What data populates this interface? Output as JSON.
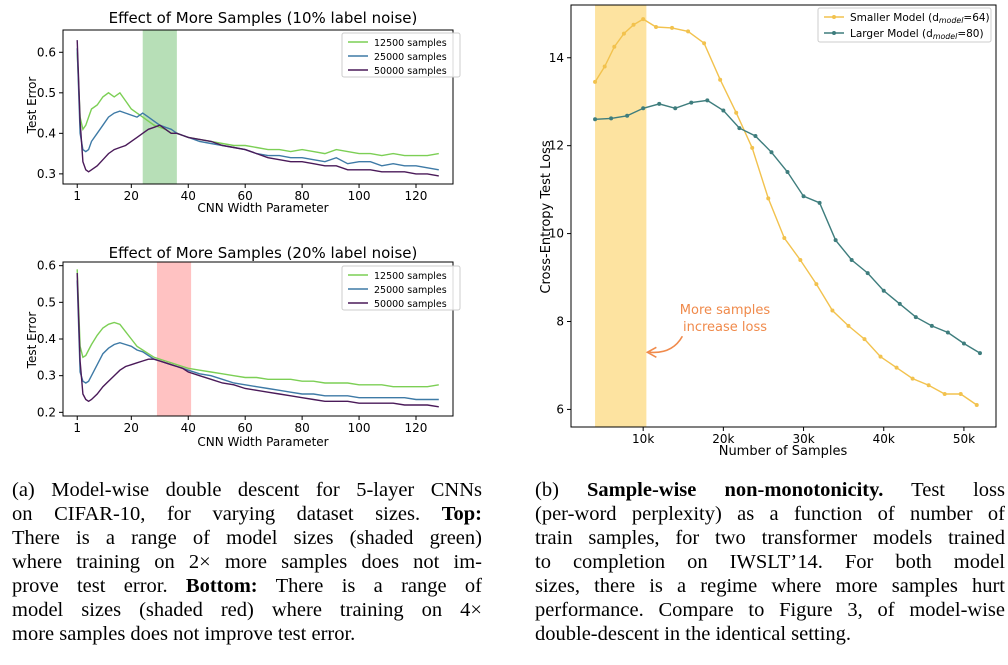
{
  "chart_data": [
    {
      "id": "top",
      "type": "line",
      "title": "Effect of More Samples (10% label noise)",
      "xlabel": "CNN Width Parameter",
      "ylabel": "Test Error",
      "xlim": [
        -4,
        133
      ],
      "ylim": [
        0.275,
        0.655
      ],
      "xticks": [
        1,
        20,
        40,
        60,
        80,
        100,
        120
      ],
      "yticks": [
        0.3,
        0.4,
        0.5,
        0.6
      ],
      "ytick_labels": [
        "0.3",
        "0.4",
        "0.5",
        "0.6"
      ],
      "grid": false,
      "legend_position": "top-right",
      "shaded_region": {
        "x": [
          24,
          36
        ],
        "color": "#b7dfb7"
      },
      "series": [
        {
          "name": "12500 samples",
          "color": "#7ccf55",
          "x": [
            1,
            2,
            3,
            4,
            5,
            6,
            8,
            10,
            12,
            14,
            16,
            18,
            20,
            22,
            24,
            26,
            28,
            30,
            32,
            34,
            36,
            38,
            40,
            44,
            48,
            52,
            56,
            60,
            64,
            68,
            72,
            76,
            80,
            84,
            88,
            92,
            96,
            100,
            104,
            108,
            112,
            116,
            120,
            124,
            128
          ],
          "y": [
            0.6,
            0.44,
            0.41,
            0.42,
            0.44,
            0.46,
            0.47,
            0.49,
            0.5,
            0.49,
            0.5,
            0.48,
            0.46,
            0.45,
            0.44,
            0.43,
            0.42,
            0.415,
            0.41,
            0.4,
            0.4,
            0.395,
            0.39,
            0.385,
            0.38,
            0.375,
            0.37,
            0.37,
            0.365,
            0.36,
            0.36,
            0.355,
            0.36,
            0.355,
            0.35,
            0.36,
            0.355,
            0.35,
            0.35,
            0.345,
            0.35,
            0.345,
            0.345,
            0.345,
            0.35
          ]
        },
        {
          "name": "25000 samples",
          "color": "#3e7aa6",
          "x": [
            1,
            2,
            3,
            4,
            5,
            6,
            8,
            10,
            12,
            14,
            16,
            18,
            20,
            22,
            24,
            26,
            28,
            30,
            32,
            34,
            36,
            38,
            40,
            44,
            48,
            52,
            56,
            60,
            64,
            68,
            72,
            76,
            80,
            84,
            88,
            92,
            96,
            100,
            104,
            108,
            112,
            116,
            120,
            124,
            128
          ],
          "y": [
            0.61,
            0.4,
            0.36,
            0.355,
            0.36,
            0.38,
            0.4,
            0.42,
            0.44,
            0.45,
            0.455,
            0.45,
            0.445,
            0.44,
            0.45,
            0.44,
            0.43,
            0.42,
            0.415,
            0.41,
            0.4,
            0.395,
            0.39,
            0.38,
            0.375,
            0.37,
            0.365,
            0.36,
            0.35,
            0.345,
            0.345,
            0.34,
            0.34,
            0.335,
            0.33,
            0.34,
            0.325,
            0.33,
            0.33,
            0.32,
            0.325,
            0.32,
            0.32,
            0.315,
            0.31
          ]
        },
        {
          "name": "50000 samples",
          "color": "#4a1a59",
          "x": [
            1,
            2,
            3,
            4,
            5,
            6,
            8,
            10,
            12,
            14,
            16,
            18,
            20,
            22,
            24,
            26,
            28,
            30,
            32,
            34,
            36,
            38,
            40,
            44,
            48,
            52,
            56,
            60,
            64,
            68,
            72,
            76,
            80,
            84,
            88,
            92,
            96,
            100,
            104,
            108,
            112,
            116,
            120,
            124,
            128
          ],
          "y": [
            0.63,
            0.43,
            0.33,
            0.31,
            0.305,
            0.31,
            0.32,
            0.335,
            0.35,
            0.36,
            0.365,
            0.37,
            0.38,
            0.39,
            0.4,
            0.41,
            0.415,
            0.42,
            0.41,
            0.4,
            0.4,
            0.395,
            0.39,
            0.385,
            0.38,
            0.37,
            0.365,
            0.36,
            0.35,
            0.34,
            0.335,
            0.33,
            0.33,
            0.325,
            0.32,
            0.32,
            0.31,
            0.31,
            0.31,
            0.305,
            0.305,
            0.305,
            0.3,
            0.3,
            0.295
          ]
        }
      ]
    },
    {
      "id": "bottom",
      "type": "line",
      "title": "Effect of More Samples (20% label noise)",
      "xlabel": "CNN Width Parameter",
      "ylabel": "Test Error",
      "xlim": [
        -4,
        133
      ],
      "ylim": [
        0.19,
        0.61
      ],
      "xticks": [
        1,
        20,
        40,
        60,
        80,
        100,
        120
      ],
      "yticks": [
        0.2,
        0.3,
        0.4,
        0.5,
        0.6
      ],
      "ytick_labels": [
        "0.2",
        "0.3",
        "0.4",
        "0.5",
        "0.6"
      ],
      "grid": false,
      "legend_position": "top-right",
      "shaded_region": {
        "x": [
          29,
          41
        ],
        "color": "#ffc2c2"
      },
      "series": [
        {
          "name": "12500 samples",
          "color": "#7ccf55",
          "x": [
            1,
            2,
            3,
            4,
            5,
            6,
            8,
            10,
            12,
            14,
            16,
            18,
            20,
            22,
            24,
            26,
            28,
            30,
            32,
            34,
            36,
            38,
            40,
            44,
            48,
            52,
            56,
            60,
            64,
            68,
            72,
            76,
            80,
            84,
            88,
            92,
            96,
            100,
            104,
            108,
            112,
            116,
            120,
            124,
            128
          ],
          "y": [
            0.59,
            0.38,
            0.35,
            0.355,
            0.37,
            0.385,
            0.41,
            0.43,
            0.44,
            0.445,
            0.44,
            0.42,
            0.4,
            0.38,
            0.37,
            0.36,
            0.35,
            0.345,
            0.34,
            0.335,
            0.33,
            0.325,
            0.32,
            0.315,
            0.31,
            0.305,
            0.3,
            0.295,
            0.295,
            0.29,
            0.29,
            0.29,
            0.285,
            0.285,
            0.28,
            0.28,
            0.28,
            0.275,
            0.275,
            0.275,
            0.27,
            0.27,
            0.27,
            0.27,
            0.275
          ]
        },
        {
          "name": "25000 samples",
          "color": "#3e7aa6",
          "x": [
            1,
            2,
            3,
            4,
            5,
            6,
            8,
            10,
            12,
            14,
            16,
            18,
            20,
            22,
            24,
            26,
            28,
            30,
            32,
            34,
            36,
            38,
            40,
            44,
            48,
            52,
            56,
            60,
            64,
            68,
            72,
            76,
            80,
            84,
            88,
            92,
            96,
            100,
            104,
            108,
            112,
            116,
            120,
            124,
            128
          ],
          "y": [
            0.56,
            0.31,
            0.285,
            0.28,
            0.285,
            0.3,
            0.33,
            0.36,
            0.375,
            0.385,
            0.39,
            0.385,
            0.38,
            0.37,
            0.365,
            0.355,
            0.345,
            0.34,
            0.335,
            0.33,
            0.325,
            0.32,
            0.315,
            0.305,
            0.3,
            0.29,
            0.28,
            0.275,
            0.27,
            0.265,
            0.26,
            0.255,
            0.25,
            0.25,
            0.245,
            0.245,
            0.245,
            0.24,
            0.24,
            0.24,
            0.24,
            0.24,
            0.235,
            0.235,
            0.235
          ]
        },
        {
          "name": "50000 samples",
          "color": "#4a1a59",
          "x": [
            1,
            2,
            3,
            4,
            5,
            6,
            8,
            10,
            12,
            14,
            16,
            18,
            20,
            22,
            24,
            26,
            28,
            30,
            32,
            34,
            36,
            38,
            40,
            44,
            48,
            52,
            56,
            60,
            64,
            68,
            72,
            76,
            80,
            84,
            88,
            92,
            96,
            100,
            104,
            108,
            112,
            116,
            120,
            124,
            128
          ],
          "y": [
            0.58,
            0.34,
            0.25,
            0.235,
            0.23,
            0.235,
            0.25,
            0.27,
            0.285,
            0.3,
            0.315,
            0.325,
            0.33,
            0.335,
            0.34,
            0.345,
            0.345,
            0.34,
            0.335,
            0.33,
            0.325,
            0.32,
            0.31,
            0.3,
            0.29,
            0.28,
            0.275,
            0.265,
            0.26,
            0.255,
            0.25,
            0.245,
            0.24,
            0.235,
            0.23,
            0.23,
            0.23,
            0.225,
            0.225,
            0.225,
            0.225,
            0.22,
            0.22,
            0.22,
            0.215
          ]
        }
      ]
    },
    {
      "id": "right",
      "type": "line",
      "title": "",
      "xlabel": "Number of Samples",
      "ylabel": "Cross-Entropy Test Loss",
      "xlim": [
        1000,
        54000
      ],
      "ylim": [
        5.6,
        15.2
      ],
      "xticks": [
        10000,
        20000,
        30000,
        40000,
        50000
      ],
      "xtick_labels": [
        "10k",
        "20k",
        "30k",
        "40k",
        "50k"
      ],
      "yticks": [
        6,
        8,
        10,
        12,
        14
      ],
      "grid": false,
      "legend_position": "top-right",
      "shaded_region": {
        "x": [
          4000,
          10400
        ],
        "color": "#fde3a0"
      },
      "annotation": {
        "text_lines": [
          "More samples",
          "increase loss"
        ],
        "color": "#f08a4b",
        "x": 10400,
        "y": 7.3
      },
      "series": [
        {
          "name": "Smaller Model (d",
          "subscript": "model",
          "name_suffix": "=64)",
          "color": "#f2c24e",
          "x": [
            4000,
            5200,
            6400,
            7600,
            8800,
            10000,
            11600,
            13600,
            15600,
            17600,
            19600,
            21600,
            23600,
            25600,
            27600,
            29600,
            31600,
            33600,
            35600,
            37600,
            39600,
            41600,
            43600,
            45600,
            47600,
            49600,
            51600
          ],
          "y": [
            13.45,
            13.8,
            14.25,
            14.55,
            14.75,
            14.88,
            14.7,
            14.68,
            14.6,
            14.33,
            13.5,
            12.75,
            11.95,
            10.8,
            9.9,
            9.4,
            8.85,
            8.25,
            7.9,
            7.6,
            7.2,
            6.95,
            6.7,
            6.55,
            6.35,
            6.35,
            6.1
          ]
        },
        {
          "name": "Larger  Model (d",
          "subscript": "model",
          "name_suffix": "=80)",
          "color": "#3e7d7d",
          "x": [
            4000,
            6000,
            8000,
            10000,
            12000,
            14000,
            16000,
            18000,
            20000,
            22000,
            24000,
            26000,
            28000,
            30000,
            32000,
            34000,
            36000,
            38000,
            40000,
            42000,
            44000,
            46000,
            48000,
            50000,
            52000
          ],
          "y": [
            12.6,
            12.62,
            12.68,
            12.85,
            12.95,
            12.85,
            12.98,
            13.03,
            12.8,
            12.4,
            12.22,
            11.85,
            11.4,
            10.85,
            10.7,
            9.85,
            9.4,
            9.1,
            8.7,
            8.4,
            8.1,
            7.9,
            7.75,
            7.5,
            7.28
          ]
        }
      ]
    }
  ],
  "captions": {
    "a": {
      "label": "(a) Model-wise double descent for 5-layer CNNs",
      "line2": "on CIFAR-10, for varying dataset sizes.",
      "top_bold": "Top:",
      "line3": "There is a range of model sizes (shaded green)",
      "line4": "where training on 2× more samples does not im-",
      "line5_pre": "prove test error.",
      "bottom_bold": "Bottom:",
      "line5_post": "There is a range of",
      "line6": "model sizes (shaded red) where training on 4×",
      "line7": "more samples does not improve test error."
    },
    "b": {
      "label": "(b)",
      "title_bold": "Sample-wise non-monotonicity.",
      "line1_post": "Test loss",
      "line2": "(per-word perplexity) as a function of number of",
      "line3": "train samples, for two transformer models trained",
      "line4": "to completion on IWSLT’14.   For both model",
      "line5": "sizes, there is a regime where more samples hurt",
      "line6": "performance. Compare to Figure 3, of model-wise",
      "line7": "double-descent in the identical setting."
    }
  }
}
